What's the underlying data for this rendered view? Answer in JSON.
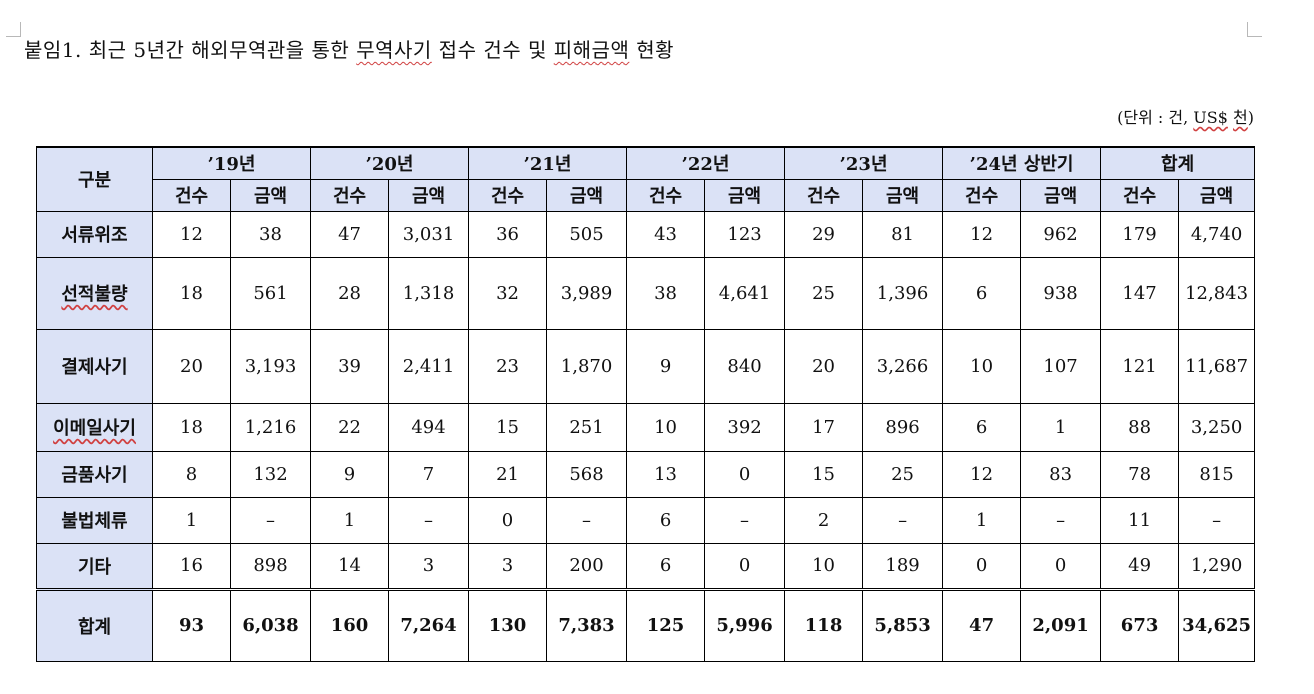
{
  "title": {
    "part1": "붙임1. 최근 5년간 해외무역관을 통한 ",
    "part2": "무역사기",
    "part3": " 접수 건수 및 ",
    "part4": "피해금액",
    "part5": " 현황"
  },
  "unit_note": {
    "open": "(단위 : 건, ",
    "currency": "US$",
    "space": " ",
    "thousand": "천",
    "close": ")"
  },
  "table": {
    "category_header": "구분",
    "years": [
      "’19년",
      "’20년",
      "’21년",
      "’22년",
      "’23년",
      "’24년 상반기",
      "합계"
    ],
    "sub_headers": [
      "건수",
      "금액"
    ],
    "rows": [
      {
        "label": "서류위조",
        "values": [
          "12",
          "38",
          "47",
          "3,031",
          "36",
          "505",
          "43",
          "123",
          "29",
          "81",
          "12",
          "962",
          "179",
          "4,740"
        ]
      },
      {
        "label": "선적불량",
        "values": [
          "18",
          "561",
          "28",
          "1,318",
          "32",
          "3,989",
          "38",
          "4,641",
          "25",
          "1,396",
          "6",
          "938",
          "147",
          "12,843"
        ]
      },
      {
        "label": "결제사기",
        "values": [
          "20",
          "3,193",
          "39",
          "2,411",
          "23",
          "1,870",
          "9",
          "840",
          "20",
          "3,266",
          "10",
          "107",
          "121",
          "11,687"
        ]
      },
      {
        "label": "이메일사기",
        "values": [
          "18",
          "1,216",
          "22",
          "494",
          "15",
          "251",
          "10",
          "392",
          "17",
          "896",
          "6",
          "1",
          "88",
          "3,250"
        ]
      },
      {
        "label": "금품사기",
        "values": [
          "8",
          "132",
          "9",
          "7",
          "21",
          "568",
          "13",
          "0",
          "15",
          "25",
          "12",
          "83",
          "78",
          "815"
        ]
      },
      {
        "label": "불법체류",
        "values": [
          "1",
          "–",
          "1",
          "–",
          "0",
          "–",
          "6",
          "–",
          "2",
          "–",
          "1",
          "–",
          "11",
          "–"
        ]
      },
      {
        "label": "기타",
        "values": [
          "16",
          "898",
          "14",
          "3",
          "3",
          "200",
          "6",
          "0",
          "10",
          "189",
          "0",
          "0",
          "49",
          "1,290"
        ]
      }
    ],
    "total": {
      "label": "합계",
      "values": [
        "93",
        "6,038",
        "160",
        "7,264",
        "130",
        "7,383",
        "125",
        "5,996",
        "118",
        "5,853",
        "47",
        "2,091",
        "673",
        "34,625"
      ]
    }
  }
}
